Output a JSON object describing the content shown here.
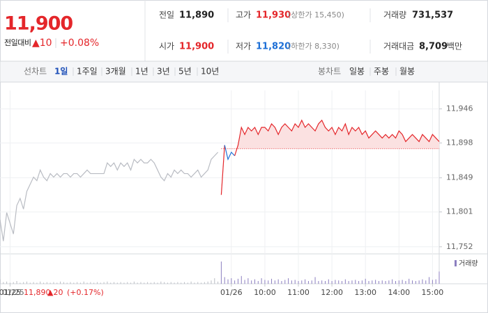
{
  "header": {
    "price": "11,900",
    "change_label": "전일대비",
    "change": "▲10",
    "change_pct": "+0.08%",
    "stats": [
      {
        "label": "전일",
        "value": "11,890",
        "color": "#222222"
      },
      {
        "label": "고가",
        "value": "11,930",
        "color": "#e4262a",
        "note": "(상한가 15,450)"
      },
      {
        "label": "거래량",
        "value": "731,537",
        "color": "#222222"
      },
      {
        "label": "시가",
        "value": "11,900",
        "color": "#e4262a"
      },
      {
        "label": "저가",
        "value": "11,820",
        "color": "#1d6fd6",
        "note": "(하한가 8,330)"
      },
      {
        "label": "거래대금",
        "value": "8,709",
        "color": "#222222",
        "unit": "백만"
      }
    ]
  },
  "tabs": {
    "line_label": "선차트",
    "line_periods": [
      "1일",
      "1주일",
      "3개월",
      "1년",
      "3년",
      "5년",
      "10년"
    ],
    "candle_label": "봉차트",
    "candle_periods": [
      "일봉",
      "주봉",
      "월봉"
    ]
  },
  "chart_data": {
    "type": "line",
    "xlim": [
      0,
      131
    ],
    "ylim": [
      11742,
      11972
    ],
    "yticks": [
      {
        "value": 11946,
        "label": "11,946"
      },
      {
        "value": 11898,
        "label": "11,898"
      },
      {
        "value": 11849,
        "label": "11,849"
      },
      {
        "value": 11801,
        "label": "11,801"
      },
      {
        "value": 11752,
        "label": "11,752"
      }
    ],
    "xticks": [
      {
        "value": 3,
        "label": "01/25"
      },
      {
        "value": 69,
        "label": "01/26"
      },
      {
        "value": 79,
        "label": "10:00"
      },
      {
        "value": 89,
        "label": "11:00"
      },
      {
        "value": 99,
        "label": "12:00"
      },
      {
        "value": 109,
        "label": "13:00"
      },
      {
        "value": 119,
        "label": "14:00"
      },
      {
        "value": 129,
        "label": "15:00"
      }
    ],
    "grid": true,
    "baseline": 11890,
    "series": [
      {
        "color": "#b9bcc3",
        "values": [
          11790,
          11760,
          11800,
          11785,
          11770,
          11810,
          11820,
          11805,
          11830,
          11840,
          11850,
          11845,
          11860,
          11850,
          11845,
          11855,
          11850,
          11855,
          11850,
          11855,
          11855,
          11850,
          11855,
          11855,
          11850,
          11855,
          11860,
          11855,
          11855,
          11855,
          11855,
          11855,
          11870,
          11865,
          11870,
          11860,
          11870,
          11865,
          11870,
          11860,
          11875,
          11870,
          11875,
          11870,
          11870,
          11875,
          11870,
          11860,
          11850,
          11845,
          11855,
          11850,
          11860,
          11855,
          11860,
          11855,
          11855,
          11850,
          11855,
          11860,
          11850,
          11855,
          11860,
          11875,
          11880,
          11885,
          null,
          null,
          null,
          null,
          null,
          null,
          null,
          null,
          null,
          null,
          null,
          null,
          null,
          null,
          null,
          null,
          null,
          null,
          null,
          null,
          null,
          null,
          null,
          null,
          null,
          null,
          null,
          null,
          null,
          null,
          null,
          null,
          null,
          null,
          null,
          null,
          null,
          null,
          null,
          null,
          null,
          null,
          null,
          null,
          null,
          null,
          null,
          null,
          null,
          null,
          null,
          null,
          null,
          null,
          null,
          null,
          null,
          null,
          null,
          null,
          null,
          null,
          null,
          null,
          null,
          null
        ]
      },
      {
        "color": "#e4262a",
        "down_color": "#1d6fd6",
        "fill": "#fbe1e1",
        "values": [
          null,
          null,
          null,
          null,
          null,
          null,
          null,
          null,
          null,
          null,
          null,
          null,
          null,
          null,
          null,
          null,
          null,
          null,
          null,
          null,
          null,
          null,
          null,
          null,
          null,
          null,
          null,
          null,
          null,
          null,
          null,
          null,
          null,
          null,
          null,
          null,
          null,
          null,
          null,
          null,
          null,
          null,
          null,
          null,
          null,
          null,
          null,
          null,
          null,
          null,
          null,
          null,
          null,
          null,
          null,
          null,
          null,
          null,
          null,
          null,
          null,
          null,
          null,
          null,
          null,
          null,
          11825,
          11895,
          11875,
          11885,
          11880,
          11895,
          11920,
          11910,
          11920,
          11915,
          11920,
          11910,
          11920,
          11920,
          11915,
          11925,
          11920,
          11910,
          11920,
          11925,
          11920,
          11915,
          11925,
          11920,
          11930,
          11920,
          11925,
          11920,
          11915,
          11925,
          11930,
          11920,
          11915,
          11920,
          11910,
          11920,
          11915,
          11925,
          11910,
          11920,
          11915,
          11920,
          11910,
          11915,
          11905,
          11910,
          11915,
          11910,
          11905,
          11910,
          11905,
          11910,
          11905,
          11915,
          11910,
          11900,
          11905,
          11910,
          11905,
          11900,
          11910,
          11905,
          11900,
          11910,
          11905,
          11900
        ]
      }
    ],
    "volume": {
      "name": "거래량",
      "color": "#8c7fc0",
      "prev_color": "#b9bcc3",
      "ylim": [
        0,
        45
      ],
      "values": [
        8,
        3,
        4,
        2,
        3,
        5,
        2,
        3,
        4,
        2,
        3,
        2,
        4,
        2,
        3,
        2,
        3,
        2,
        4,
        3,
        2,
        3,
        2,
        3,
        2,
        4,
        2,
        3,
        2,
        3,
        2,
        3,
        4,
        2,
        3,
        2,
        3,
        2,
        3,
        2,
        4,
        2,
        3,
        2,
        3,
        2,
        3,
        2,
        4,
        3,
        2,
        3,
        2,
        3,
        2,
        3,
        2,
        4,
        2,
        3,
        2,
        3,
        4,
        6,
        10,
        4,
        40,
        12,
        8,
        10,
        6,
        9,
        14,
        7,
        10,
        6,
        8,
        5,
        10,
        7,
        6,
        9,
        6,
        8,
        5,
        7,
        10,
        6,
        7,
        5,
        6,
        8,
        5,
        6,
        12,
        5,
        6,
        5,
        8,
        5,
        7,
        6,
        5,
        8,
        5,
        6,
        7,
        5,
        6,
        9,
        5,
        6,
        7,
        5,
        6,
        5,
        6,
        8,
        5,
        6,
        7,
        5,
        9,
        6,
        5,
        6,
        8,
        6,
        12,
        7,
        8,
        22
      ]
    }
  },
  "footer": {
    "date": "01/25",
    "price": "11,890",
    "change": "▲20",
    "change_pct": "(+0.17%)"
  }
}
